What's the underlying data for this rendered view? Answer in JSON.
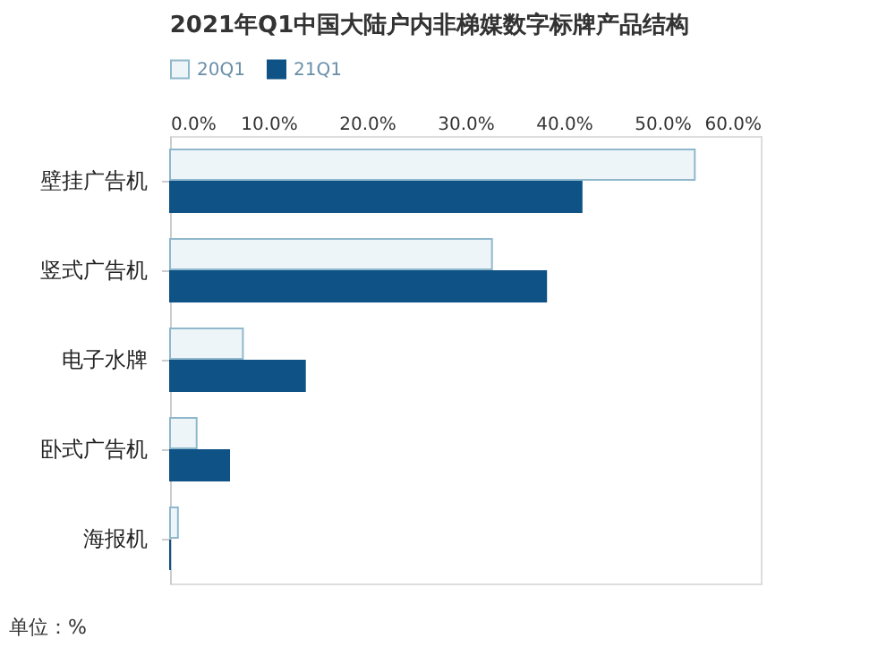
{
  "chart_data": {
    "type": "bar",
    "orientation": "horizontal",
    "title": "2021年Q1中国大陆户内非梯媒数字标牌产品结构",
    "categories": [
      "壁挂广告机",
      "竖式广告机",
      "电子水牌",
      "卧式广告机",
      "海报机"
    ],
    "series": [
      {
        "name": "20Q1",
        "color": "#eef5f9",
        "values": [
          53.3,
          32.7,
          7.4,
          2.7,
          0.8
        ]
      },
      {
        "name": "21Q1",
        "color": "#0f5285",
        "values": [
          41.8,
          38.2,
          13.7,
          6.0,
          0
        ]
      }
    ],
    "xlim": [
      0,
      60
    ],
    "xticks": [
      {
        "value": 0,
        "label": "0.0%"
      },
      {
        "value": 10,
        "label": "10.0%"
      },
      {
        "value": 20,
        "label": "20.0%"
      },
      {
        "value": 30,
        "label": "30.0%"
      },
      {
        "value": 40,
        "label": "40.0%"
      },
      {
        "value": 50,
        "label": "50.0%"
      },
      {
        "value": 60,
        "label": "60.0%"
      }
    ],
    "grid": false,
    "legend": "top",
    "annotations": [
      "单位：%"
    ]
  }
}
